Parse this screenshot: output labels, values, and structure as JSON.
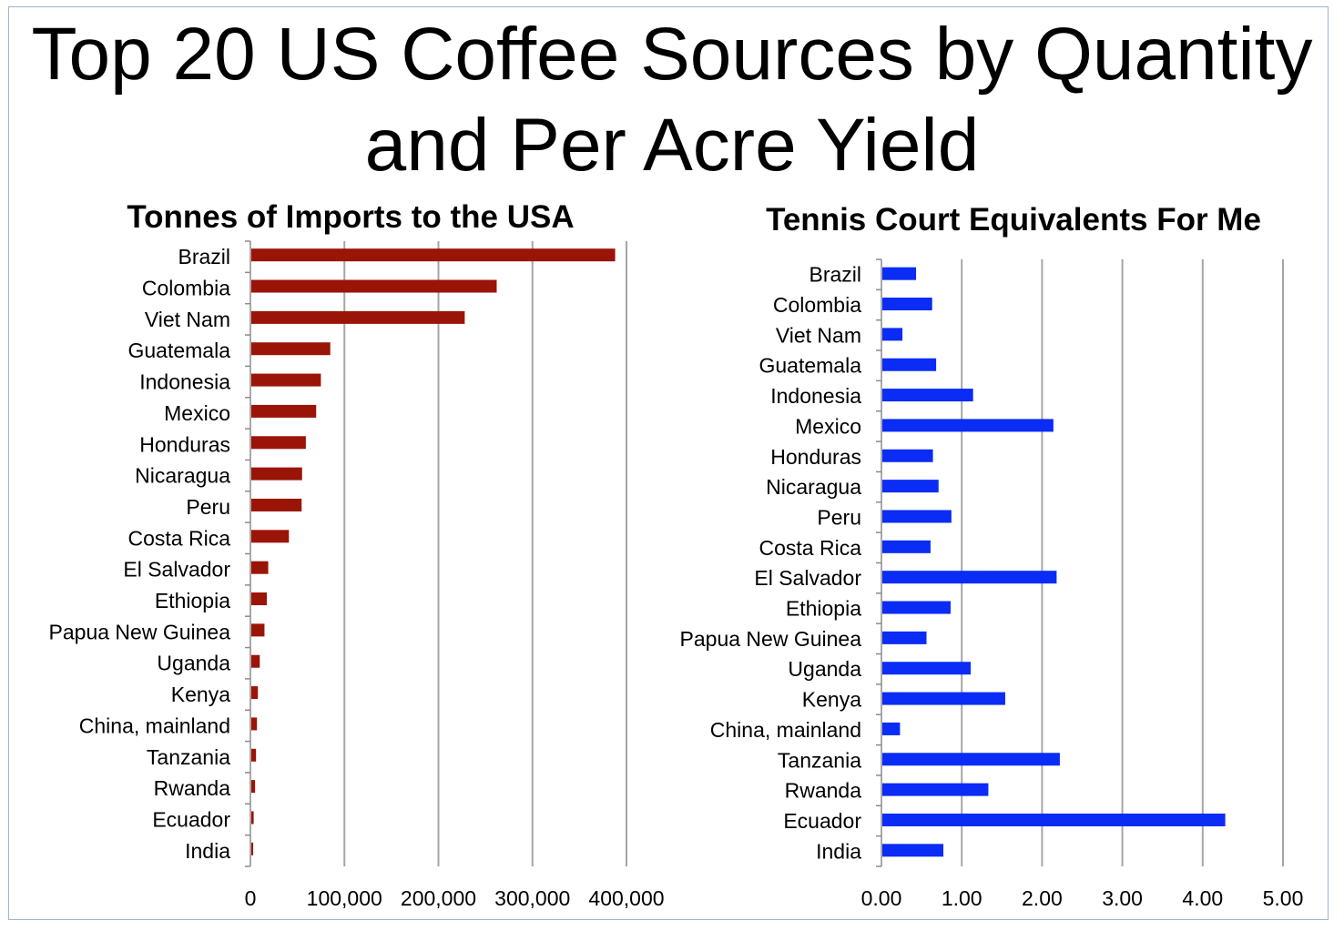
{
  "page": {
    "title_line1": "Top 20 US Coffee Sources by Quantity",
    "title_line2": "and Per Acre Yield"
  },
  "colors": {
    "left_bars": "#9b1408",
    "right_bars": "#0a2cf5",
    "grid": "#a6a6a6"
  },
  "chart_data": [
    {
      "type": "bar",
      "orientation": "horizontal",
      "title": "Tonnes of Imports to the USA",
      "categories": [
        "Brazil",
        "Colombia",
        "Viet Nam",
        "Guatemala",
        "Indonesia",
        "Mexico",
        "Honduras",
        "Nicaragua",
        "Peru",
        "Costa Rica",
        "El Salvador",
        "Ethiopia",
        "Papua New Guinea",
        "Uganda",
        "Kenya",
        "China, mainland",
        "Tanzania",
        "Rwanda",
        "Ecuador",
        "India"
      ],
      "values": [
        387000,
        261000,
        227000,
        84000,
        74000,
        69000,
        58000,
        54000,
        53500,
        40000,
        18000,
        16500,
        14000,
        9000,
        7000,
        6000,
        5000,
        4000,
        2500,
        2000
      ],
      "xlim": [
        0,
        400000
      ],
      "ticks": [
        0,
        100000,
        200000,
        300000,
        400000
      ],
      "tick_labels": [
        "0",
        "100,000",
        "200,000",
        "300,000",
        "400,000"
      ],
      "grid": true,
      "legend": "none"
    },
    {
      "type": "bar",
      "orientation": "horizontal",
      "title": "Tennis Court Equivalents For Me",
      "categories": [
        "Brazil",
        "Colombia",
        "Viet Nam",
        "Guatemala",
        "Indonesia",
        "Mexico",
        "Honduras",
        "Nicaragua",
        "Peru",
        "Costa Rica",
        "El Salvador",
        "Ethiopia",
        "Papua New Guinea",
        "Uganda",
        "Kenya",
        "China, mainland",
        "Tanzania",
        "Rwanda",
        "Ecuador",
        "India"
      ],
      "values": [
        0.42,
        0.62,
        0.25,
        0.67,
        1.13,
        2.13,
        0.63,
        0.7,
        0.86,
        0.6,
        2.17,
        0.85,
        0.55,
        1.1,
        1.53,
        0.22,
        2.21,
        1.32,
        4.27,
        0.76
      ],
      "xlim": [
        0,
        5
      ],
      "ticks": [
        0,
        1,
        2,
        3,
        4,
        5
      ],
      "tick_labels": [
        "0.00",
        "1.00",
        "2.00",
        "3.00",
        "4.00",
        "5.00"
      ],
      "grid": true,
      "legend": "none"
    }
  ]
}
